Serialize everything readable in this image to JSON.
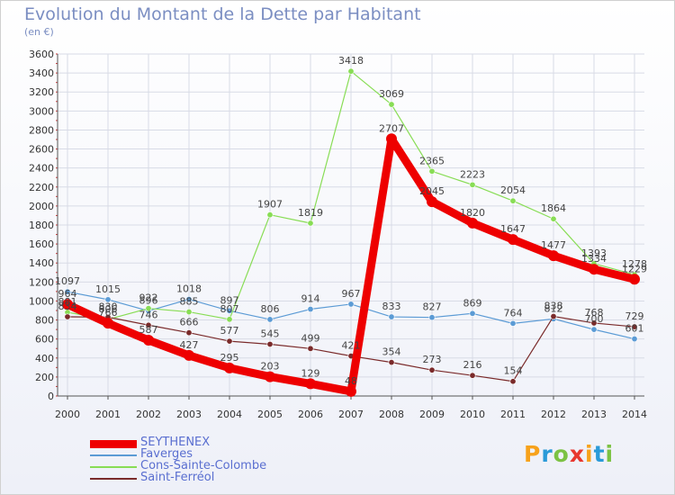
{
  "header": {
    "title": "Evolution du Montant de la Dette par Habitant",
    "subtitle": "(en €)"
  },
  "logo": {
    "letters": [
      "P",
      "r",
      "o",
      "x",
      "i",
      "t",
      "i"
    ],
    "colors": [
      "#f7a21b",
      "#2a9ad8",
      "#7cc243",
      "#e8372f",
      "#f7a21b",
      "#2a9ad8",
      "#7cc243"
    ]
  },
  "chart_data": {
    "type": "line",
    "title": "Evolution du Montant de la Dette par Habitant",
    "ylabel": "(en €)",
    "x": [
      "2000",
      "2001",
      "2002",
      "2003",
      "2004",
      "2005",
      "2006",
      "2007",
      "2008",
      "2009",
      "2010",
      "2011",
      "2012",
      "2013",
      "2014"
    ],
    "ylim": [
      0,
      3600
    ],
    "yticks": [
      "0",
      "200",
      "400",
      "600",
      "800",
      "1000",
      "1200",
      "1400",
      "1600",
      "1800",
      "2000",
      "2200",
      "2400",
      "2600",
      "2800",
      "3000",
      "3200",
      "3400",
      "3600"
    ],
    "grid": true,
    "legend": "bottom-left",
    "series": [
      {
        "name": "SEYTHENEX",
        "color": "#ee0000",
        "values": [
          964,
          766,
          587,
          427,
          295,
          203,
          129,
          48,
          2707,
          2045,
          1820,
          1647,
          1477,
          1334,
          1229
        ]
      },
      {
        "name": "Faverges",
        "color": "#5b9bd5",
        "values": [
          1097,
          1015,
          896,
          1018,
          897,
          806,
          914,
          967,
          833,
          827,
          869,
          764,
          812,
          700,
          601
        ]
      },
      {
        "name": "Cons-Sainte-Colombe",
        "color": "#88dd55",
        "values": [
          881,
          806,
          922,
          885,
          807,
          1907,
          1819,
          3418,
          3069,
          2365,
          2223,
          2054,
          1864,
          1393,
          1278
        ]
      },
      {
        "name": "Saint-Ferréol",
        "color": "#7a2a2a",
        "values": [
          834,
          830,
          746,
          666,
          577,
          545,
          499,
          421,
          354,
          273,
          216,
          154,
          838,
          768,
          729
        ]
      }
    ]
  }
}
